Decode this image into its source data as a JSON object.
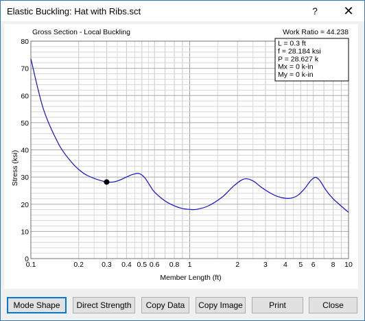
{
  "window": {
    "title": "Elastic Buckling: Hat with Ribs.sct",
    "help_glyph": "?",
    "close_glyph": "✕"
  },
  "chart_data": {
    "type": "line",
    "title": "Gross Section - Local Buckling",
    "work_ratio": "Work Ratio = 44.238",
    "xlabel": "Member Length (ft)",
    "ylabel": "Stress (ksi)",
    "x_scale": "log",
    "xlim": [
      0.1,
      10
    ],
    "ylim": [
      0,
      80
    ],
    "x_ticks": [
      0.1,
      0.2,
      0.3,
      0.4,
      0.5,
      0.6,
      0.8,
      1,
      2,
      3,
      4,
      5,
      6,
      8,
      10
    ],
    "x_tick_labels": [
      "0.1",
      "0.2",
      "0.3",
      "0.4",
      "0.5",
      "0.6",
      "0.8",
      "1",
      "2",
      "3",
      "4",
      "5",
      "6",
      "8",
      "10"
    ],
    "y_ticks": [
      0,
      10,
      20,
      30,
      40,
      50,
      60,
      70,
      80
    ],
    "y_tick_labels": [
      "0",
      "10",
      "20",
      "30",
      "40",
      "50",
      "60",
      "70",
      "80"
    ],
    "grid": true,
    "legend_position": "top-right",
    "line_color": "#1010d0",
    "series": [
      {
        "x": [
          0.1,
          0.12,
          0.15,
          0.18,
          0.2,
          0.22,
          0.25,
          0.28,
          0.3,
          0.33,
          0.36,
          0.4,
          0.44,
          0.48,
          0.52,
          0.56,
          0.6,
          0.7,
          0.8,
          0.9,
          1.0,
          1.1,
          1.3,
          1.6,
          1.9,
          2.2,
          2.5,
          2.8,
          3.2,
          3.6,
          4.0,
          4.4,
          4.8,
          5.3,
          5.8,
          6.2,
          6.6,
          7.2,
          8.0,
          9.0,
          10.0
        ],
        "y": [
          73.5,
          55,
          42,
          35.5,
          32.8,
          31,
          29.5,
          28.6,
          28.18,
          28.2,
          28.8,
          30.0,
          31.0,
          31.3,
          29.8,
          27.0,
          24.5,
          21.2,
          19.4,
          18.4,
          18.1,
          18.1,
          19.3,
          22.6,
          26.8,
          29.3,
          28.6,
          26.4,
          24.2,
          22.8,
          22.2,
          22.3,
          23.3,
          25.8,
          28.8,
          29.9,
          28.7,
          25.2,
          22.0,
          19.3,
          17.0
        ]
      }
    ],
    "marker": {
      "x": 0.3,
      "y": 28.184
    },
    "info_box": [
      "L = 0.3 ft",
      "f = 28.184 ksi",
      "P = 28.627 k",
      "Mx = 0 k-in",
      "My = 0 k-in"
    ]
  },
  "buttons": {
    "mode_shape": "Mode Shape",
    "direct_strength": "Direct Strength",
    "copy_data": "Copy Data",
    "copy_image": "Copy Image",
    "print": "Print",
    "close": "Close"
  }
}
